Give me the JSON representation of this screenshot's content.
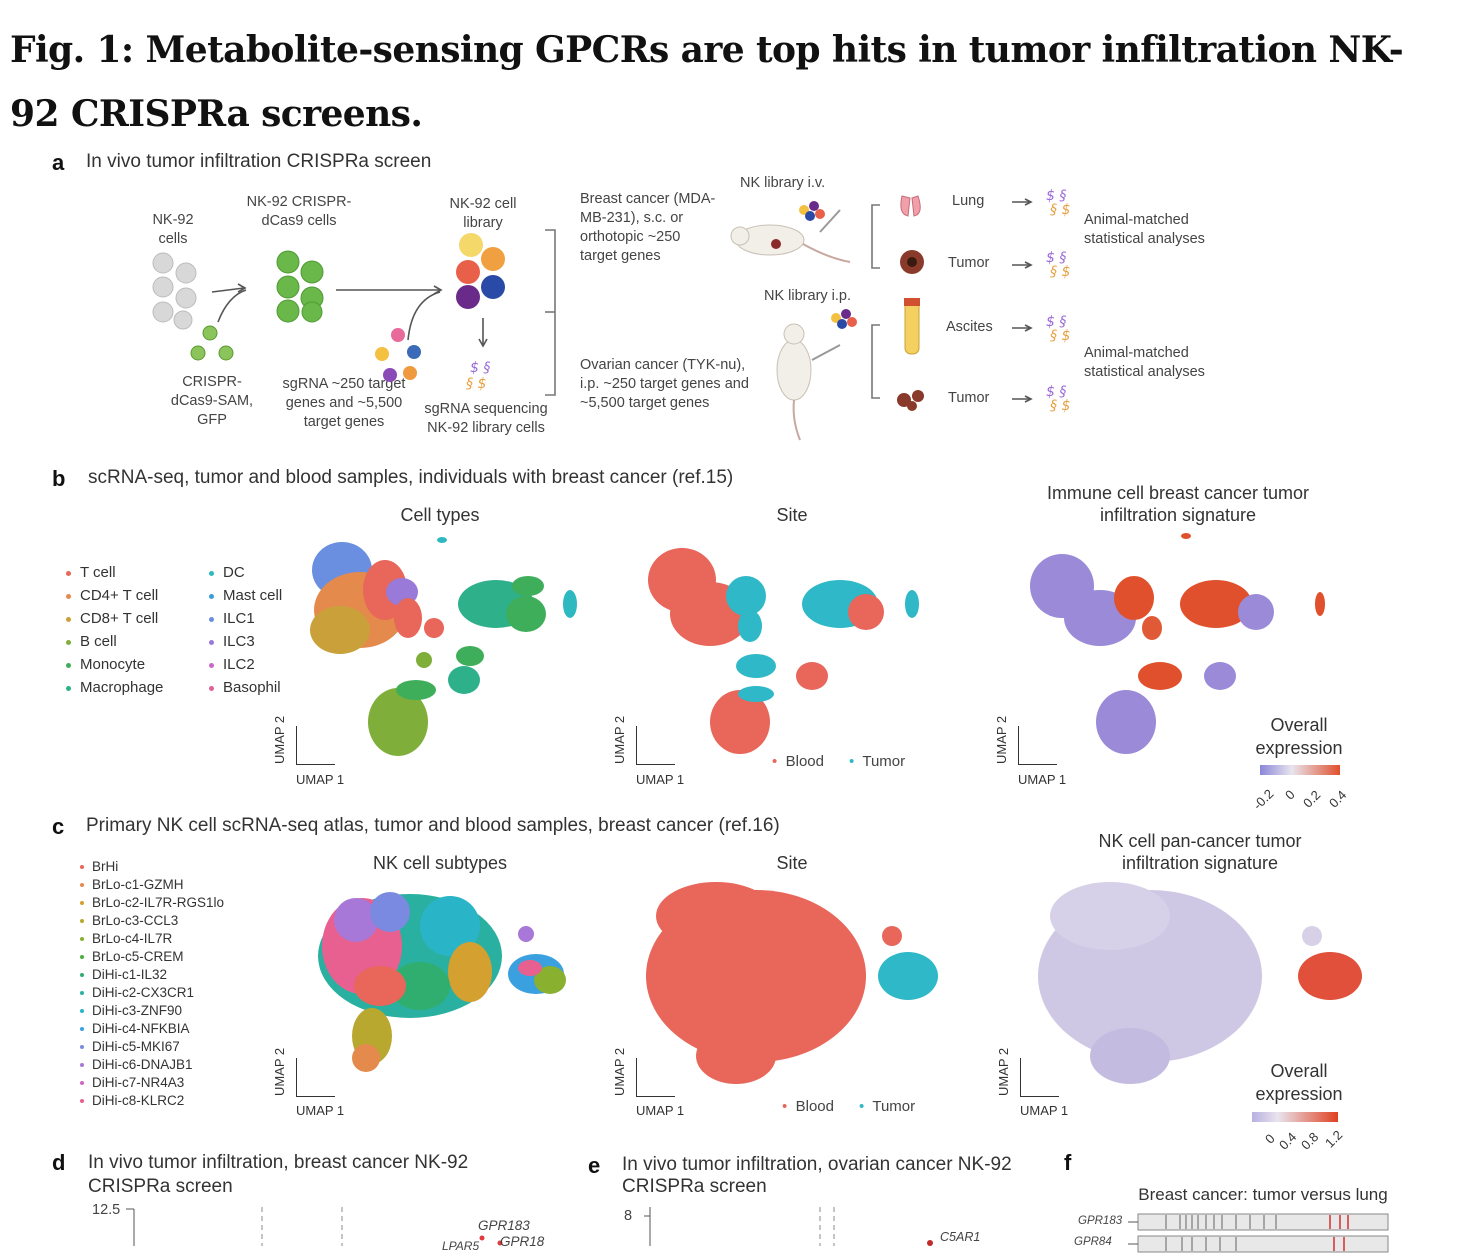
{
  "figure": {
    "title": "Fig. 1: Metabolite-sensing GPCRs are top hits in tumor infiltration NK-92 CRISPRa screens."
  },
  "panel_a": {
    "label": "a",
    "title": "In vivo tumor infiltration CRISPRa screen",
    "nk92_cells": "NK-92 cells",
    "crispr_cells": "NK-92 CRISPR-dCas9 cells",
    "cell_library": "NK-92 cell library",
    "crispr_sam": "CRISPR- dCas9-SAM, GFP",
    "sgrna": "sgRNA ~250 target genes and ~5,500 target genes",
    "sgrna_seq": "sgRNA sequencing NK-92 library cells",
    "breast_model": "Breast cancer (MDA-MB-231), s.c. or orthotopic ~250 target genes",
    "ovarian_model": "Ovarian cancer (TYK-nu), i.p. ~250 target genes and ~5,500 target genes",
    "nk_iv": "NK library i.v.",
    "nk_ip": "NK library i.p.",
    "lung": "Lung",
    "tumor1": "Tumor",
    "ascites": "Ascites",
    "tumor2": "Tumor",
    "analysis1": "Animal-matched statistical analyses",
    "analysis2": "Animal-matched statistical analyses"
  },
  "panel_b": {
    "label": "b",
    "title": "scRNA-seq, tumor and blood samples, individuals with breast cancer (ref.15)",
    "plot1_title": "Cell types",
    "plot2_title": "Site",
    "plot3_title": "Immune cell breast cancer tumor infiltration signature",
    "legend": [
      {
        "label": "T cell",
        "color": "#e8665a"
      },
      {
        "label": "CD4+ T cell",
        "color": "#e48a4c"
      },
      {
        "label": "CD8+ T cell",
        "color": "#c9a03a"
      },
      {
        "label": "B cell",
        "color": "#7fae3a"
      },
      {
        "label": "Monocyte",
        "color": "#3fae5a"
      },
      {
        "label": "Macrophage",
        "color": "#2eb08a"
      },
      {
        "label": "DC",
        "color": "#2eb8c0"
      },
      {
        "label": "Mast cell",
        "color": "#3a9fd8"
      },
      {
        "label": "ILC1",
        "color": "#6a8ee0"
      },
      {
        "label": "ILC3",
        "color": "#9a7ad8"
      },
      {
        "label": "ILC2",
        "color": "#c868c8"
      },
      {
        "label": "Basophil",
        "color": "#e0609a"
      }
    ],
    "umap1": "UMAP 1",
    "umap2": "UMAP 2",
    "site_blood": "Blood",
    "site_tumor": "Tumor",
    "colorbar_title": "Overall expression",
    "colorbar_ticks": [
      "-0.2",
      "0",
      "0.2",
      "0.4"
    ]
  },
  "panel_c": {
    "label": "c",
    "title": "Primary NK cell scRNA-seq atlas, tumor and blood samples, breast cancer (ref.16)",
    "plot1_title": "NK cell subtypes",
    "plot2_title": "Site",
    "plot3_title": "NK cell pan-cancer tumor infiltration signature",
    "legend": [
      {
        "label": "BrHi",
        "color": "#e8665a"
      },
      {
        "label": "BrLo-c1-GZMH",
        "color": "#e48a4c"
      },
      {
        "label": "BrLo-c2-IL7R-RGS1lo",
        "color": "#d4a030"
      },
      {
        "label": "BrLo-c3-CCL3",
        "color": "#b8a830"
      },
      {
        "label": "BrLo-c4-IL7R",
        "color": "#8ab030"
      },
      {
        "label": "BrLo-c5-CREM",
        "color": "#4aae40"
      },
      {
        "label": "DiHi-c1-IL32",
        "color": "#30ae70"
      },
      {
        "label": "DiHi-c2-CX3CR1",
        "color": "#2ab0a0"
      },
      {
        "label": "DiHi-c3-ZNF90",
        "color": "#2ab4c8"
      },
      {
        "label": "DiHi-c4-NFKBIA",
        "color": "#3aa0e0"
      },
      {
        "label": "DiHi-c5-MKI67",
        "color": "#7a8ae0"
      },
      {
        "label": "DiHi-c6-DNAJB1",
        "color": "#a878d8"
      },
      {
        "label": "DiHi-c7-NR4A3",
        "color": "#d068c0"
      },
      {
        "label": "DiHi-c8-KLRC2",
        "color": "#e86090"
      }
    ],
    "umap1": "UMAP 1",
    "umap2": "UMAP 2",
    "site_blood": "Blood",
    "site_tumor": "Tumor",
    "colorbar_title": "Overall expression",
    "colorbar_ticks": [
      "0",
      "0.4",
      "0.8",
      "1.2"
    ]
  },
  "panel_d": {
    "label": "d",
    "title": "In vivo tumor infiltration, breast cancer NK-92 CRISPRa screen",
    "y_tick": "12.5",
    "genes": [
      "GPR183",
      "GPR18"
    ],
    "partial_gene": "LPAR5"
  },
  "panel_e": {
    "label": "e",
    "title": "In vivo tumor infiltration, ovarian cancer NK-92 CRISPRa screen",
    "y_tick": "8",
    "genes": [
      "C5AR1"
    ]
  },
  "panel_f": {
    "label": "f",
    "title": "Breast cancer: tumor versus lung",
    "genes": [
      "GPR183",
      "GPR84"
    ]
  },
  "colors": {
    "blood": "#e8665a",
    "tumor": "#2eb8c8",
    "sig_low": "#9a8ad8",
    "sig_high": "#e03a20"
  }
}
